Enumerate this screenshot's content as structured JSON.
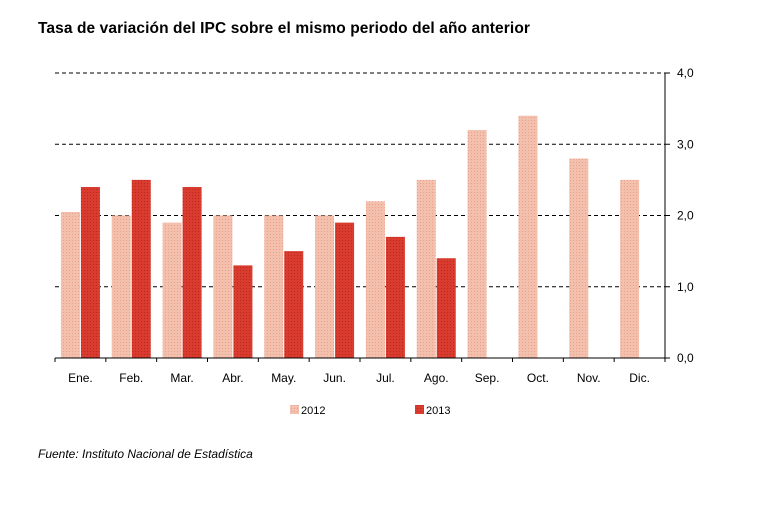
{
  "chart_data": {
    "type": "bar",
    "title": "Tasa de variación del IPC sobre el mismo periodo del año anterior",
    "source": "Fuente: Instituto Nacional de Estadística",
    "categories": [
      "Ene.",
      "Feb.",
      "Mar.",
      "Abr.",
      "May.",
      "Jun.",
      "Jul.",
      "Ago.",
      "Sep.",
      "Oct.",
      "Nov.",
      "Dic."
    ],
    "series": [
      {
        "name": "2012",
        "color": "#f2b6a3",
        "values": [
          2.05,
          2.0,
          1.9,
          2.0,
          2.0,
          2.0,
          2.2,
          2.5,
          3.2,
          3.4,
          2.8,
          2.5
        ]
      },
      {
        "name": "2013",
        "color": "#d63a2c",
        "values": [
          2.4,
          2.5,
          2.4,
          1.3,
          1.5,
          1.9,
          1.7,
          1.4,
          null,
          null,
          null,
          null
        ]
      }
    ],
    "ylim": [
      0,
      4
    ],
    "yticks": [
      "0,0",
      "1,0",
      "2,0",
      "3,0",
      "4,0"
    ],
    "ytick_values": [
      0,
      1,
      2,
      3,
      4
    ],
    "grid": true,
    "legend_position": "bottom"
  }
}
